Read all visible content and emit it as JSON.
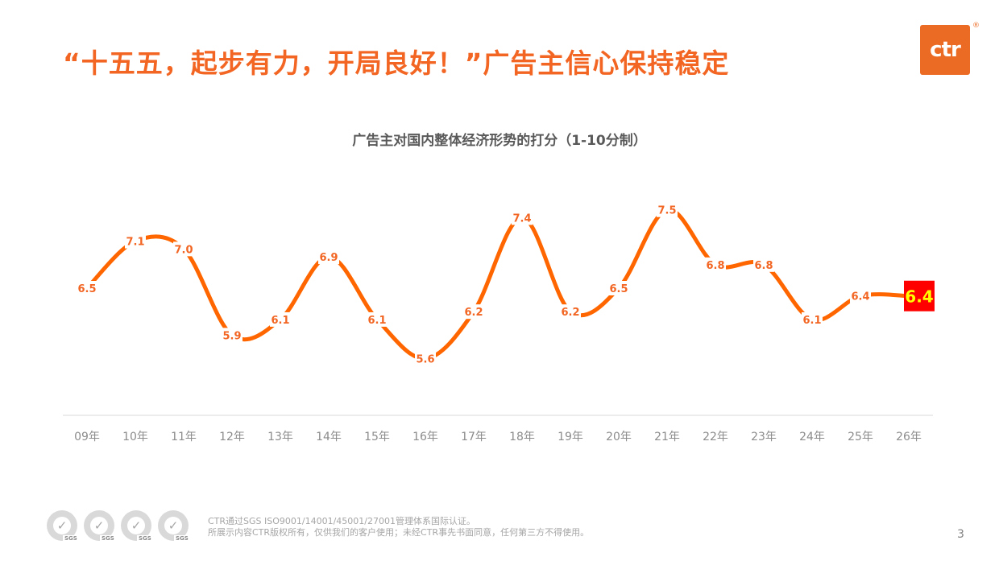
{
  "header": {
    "headline": "“十五五，起步有力，开局良好！”广告主信心保持稳定",
    "logo_text": "ctr",
    "logo_mark": "®"
  },
  "chart_data": {
    "type": "line",
    "title": "广告主对国内整体经济形势的打分（1-10分制）",
    "categories": [
      "09年",
      "10年",
      "11年",
      "12年",
      "13年",
      "14年",
      "15年",
      "16年",
      "17年",
      "18年",
      "19年",
      "20年",
      "21年",
      "22年",
      "23年",
      "24年",
      "25年",
      "26年"
    ],
    "series": [
      {
        "values": [
          6.5,
          7.1,
          7.0,
          5.9,
          6.1,
          6.9,
          6.1,
          5.6,
          6.2,
          7.4,
          6.2,
          6.5,
          7.5,
          6.8,
          6.8,
          6.1,
          6.4,
          6.4
        ]
      }
    ],
    "highlight": {
      "index": 17,
      "label": "6.4",
      "bg_color": "#ff0000",
      "text_color": "#ffff00"
    },
    "line_color": "#ff6600",
    "label_color": "#f26522",
    "smooth": true,
    "grid": false
  },
  "footer": {
    "badge_label": "SGS",
    "cert_line1": "CTR通过SGS ISO9001/14001/45001/27001管理体系国际认证。",
    "cert_line2": "所展示内容CTR版权所有，仅供我们的客户使用；未经CTR事先书面同意，任何第三方不得使用。",
    "page_number": "3"
  }
}
